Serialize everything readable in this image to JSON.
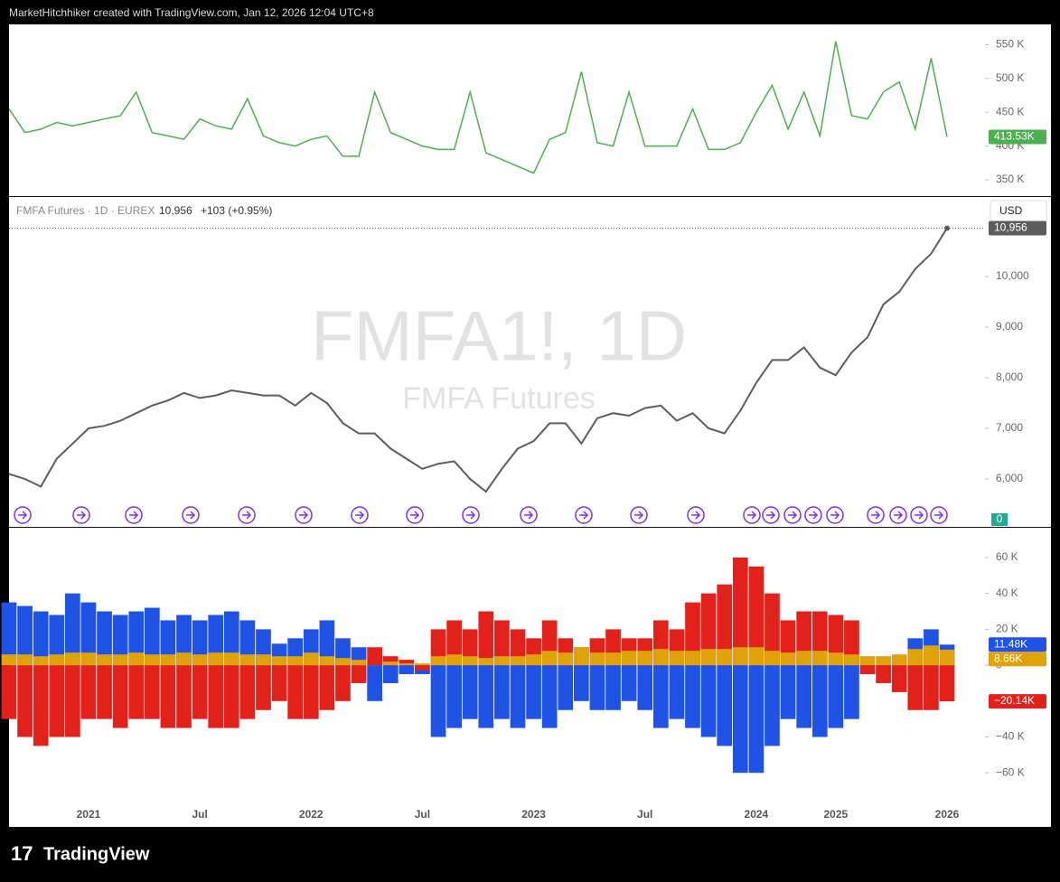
{
  "header": "MarketHitchhiker created with TradingView.com, Jan 12, 2026 12:04 UTC+8",
  "footer": "TradingView",
  "chart_data": [
    {
      "type": "line",
      "color": "#4caf50",
      "values": [
        455,
        420,
        425,
        435,
        430,
        435,
        440,
        445,
        480,
        420,
        415,
        410,
        440,
        430,
        425,
        470,
        415,
        405,
        400,
        410,
        415,
        385,
        385,
        480,
        420,
        410,
        400,
        395,
        395,
        480,
        390,
        380,
        370,
        360,
        410,
        420,
        510,
        405,
        400,
        480,
        400,
        400,
        400,
        455,
        395,
        395,
        405,
        450,
        490,
        425,
        480,
        415,
        555,
        445,
        440,
        480,
        495,
        425,
        530,
        413.53
      ],
      "last_label": "413.53K",
      "ylim": [
        326,
        580
      ],
      "yticks": [
        {
          "value": 350,
          "label": "350 K"
        },
        {
          "value": 400,
          "label": "400 K"
        },
        {
          "value": 450,
          "label": "450 K"
        },
        {
          "value": 500,
          "label": "500 K"
        },
        {
          "value": 550,
          "label": "550 K"
        }
      ]
    },
    {
      "type": "line",
      "color": "#5d5d5d",
      "legend_symbol": "FMFA Futures · 1D · EUREX",
      "legend_price": "10,956",
      "legend_change": "+103 (+0.95%)",
      "watermark": "FMFA1!, 1D",
      "watermark_sub": "FMFA Futures",
      "currency": "USD",
      "volume_label": "0",
      "values": [
        6100,
        6000,
        5850,
        6400,
        6700,
        7000,
        7050,
        7150,
        7300,
        7450,
        7550,
        7700,
        7600,
        7650,
        7750,
        7700,
        7650,
        7650,
        7450,
        7700,
        7500,
        7100,
        6900,
        6900,
        6600,
        6400,
        6200,
        6300,
        6350,
        6000,
        5750,
        6200,
        6600,
        6750,
        7100,
        7100,
        6700,
        7200,
        7300,
        7250,
        7400,
        7450,
        7150,
        7300,
        7000,
        6900,
        7350,
        7900,
        8350,
        8350,
        8600,
        8200,
        8050,
        8500,
        8800,
        9450,
        9700,
        10150,
        10450,
        10956
      ],
      "last_label": "10,956",
      "ylim": [
        5054,
        11571
      ],
      "yticks": [
        {
          "value": 6000,
          "label": "6,000"
        },
        {
          "value": 7000,
          "label": "7,000"
        },
        {
          "value": 8000,
          "label": "8,000"
        },
        {
          "value": 9000,
          "label": "9,000"
        },
        {
          "value": 10000,
          "label": "10,000"
        }
      ]
    },
    {
      "type": "bar",
      "categories": [
        null,
        null,
        null,
        null,
        null,
        "2021",
        null,
        null,
        null,
        null,
        null,
        null,
        "Jul",
        null,
        null,
        null,
        null,
        null,
        null,
        "2022",
        null,
        null,
        null,
        null,
        null,
        null,
        "Jul",
        null,
        null,
        null,
        null,
        null,
        null,
        "2023",
        null,
        null,
        null,
        null,
        null,
        null,
        "Jul",
        null,
        null,
        null,
        null,
        null,
        null,
        "2024",
        null,
        null,
        null,
        null,
        "2025",
        null,
        null,
        null,
        null,
        null,
        null,
        "2026"
      ],
      "series": [
        {
          "color": "#1e53e5",
          "last_label": "11.48K",
          "values": [
            35,
            33,
            30,
            28,
            40,
            35,
            30,
            28,
            30,
            32,
            25,
            28,
            25,
            28,
            30,
            25,
            20,
            12,
            15,
            20,
            25,
            15,
            10,
            -20,
            -10,
            -5,
            -5,
            -40,
            -35,
            -30,
            -35,
            -30,
            -35,
            -30,
            -35,
            -25,
            -20,
            -25,
            -25,
            -20,
            -25,
            -35,
            -30,
            -35,
            -40,
            -45,
            -60,
            -60,
            -45,
            -30,
            -35,
            -40,
            -35,
            -30,
            -5,
            -5,
            5,
            15,
            20,
            11.48
          ]
        },
        {
          "color": "#e3211b",
          "last_label": "−20.14K",
          "values": [
            -30,
            -40,
            -45,
            -40,
            -40,
            -30,
            -30,
            -35,
            -30,
            -30,
            -35,
            -35,
            -30,
            -35,
            -35,
            -30,
            -25,
            -20,
            -30,
            -30,
            -25,
            -20,
            -10,
            10,
            5,
            3,
            -3,
            20,
            25,
            20,
            30,
            25,
            20,
            15,
            25,
            15,
            10,
            15,
            20,
            15,
            15,
            25,
            20,
            35,
            40,
            45,
            60,
            55,
            40,
            25,
            30,
            30,
            28,
            25,
            -5,
            -10,
            -15,
            -25,
            -25,
            -20.14
          ]
        },
        {
          "color": "#e0a20a",
          "last_label": "8.66K",
          "values": [
            6,
            6,
            5,
            6,
            7,
            7,
            6,
            6,
            7,
            6,
            6,
            7,
            6,
            7,
            7,
            6,
            6,
            5,
            5,
            7,
            5,
            4,
            3,
            0,
            2,
            1,
            1,
            5,
            6,
            5,
            4,
            5,
            5,
            6,
            8,
            7,
            10,
            7,
            7,
            8,
            8,
            9,
            8,
            8,
            9,
            9,
            10,
            10,
            8,
            7,
            8,
            8,
            7,
            6,
            5,
            5,
            6,
            9,
            11,
            8.66
          ]
        }
      ],
      "ylim": [
        -75,
        76.6
      ],
      "yticks": [
        {
          "value": 60,
          "label": "60 K"
        },
        {
          "value": 40,
          "label": "40 K"
        },
        {
          "value": 20,
          "label": "20 K"
        },
        0,
        {
          "value": -40,
          "label": "−40 K"
        },
        {
          "value": -60,
          "label": "−60 K"
        }
      ]
    }
  ]
}
